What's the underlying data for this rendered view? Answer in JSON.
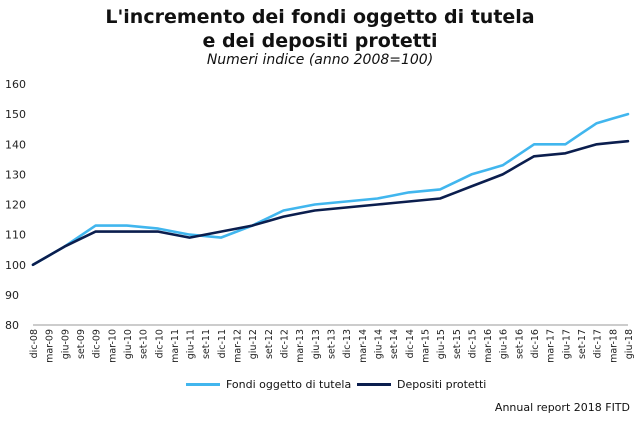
{
  "header": {
    "title_line1": "L'incremento dei fondi oggetto di tutela",
    "title_line2": "e dei depositi protetti",
    "subtitle": "Numeri indice (anno 2008=100)"
  },
  "source": "Annual report 2018 FITD",
  "colors": {
    "fondi": "#41b6ee",
    "depositi": "#0b1e4e",
    "axis": "#9a9a9a"
  },
  "chart_data": {
    "type": "line",
    "title": "L'incremento dei fondi oggetto di tutela e dei depositi protetti",
    "subtitle": "Numeri indice (anno 2008=100)",
    "x": [
      "dic-08",
      "mar-09",
      "giu-09",
      "set-09",
      "dic-09",
      "mar-10",
      "giu-10",
      "set-10",
      "dic-10",
      "mar-11",
      "giu-11",
      "set-11",
      "dic-11",
      "mar-12",
      "giu-12",
      "set-12",
      "dic-12",
      "mar-13",
      "giu-13",
      "set-13",
      "dic-13",
      "mar-14",
      "giu-14",
      "set-14",
      "dic-14",
      "mar-15",
      "giu-15",
      "set-15",
      "dic-15",
      "mar-16",
      "giu-16",
      "set-16",
      "dic-16",
      "mar-17",
      "giu-17",
      "set-17",
      "dic-17",
      "mar-18",
      "giu-18"
    ],
    "series": [
      {
        "name": "Fondi oggetto di tutela",
        "values": [
          100,
          103,
          106,
          109.5,
          113,
          113,
          113,
          112.5,
          112,
          111,
          110,
          109.5,
          109,
          111,
          113,
          115.5,
          118,
          119,
          120,
          120.5,
          121,
          121.5,
          122,
          123,
          124,
          124.5,
          125,
          127.5,
          130,
          131.5,
          133,
          136.5,
          140,
          140,
          140,
          143.5,
          147,
          148.5,
          150
        ]
      },
      {
        "name": "Depositi protetti",
        "values": [
          100,
          103,
          106,
          108.5,
          111,
          111,
          111,
          111,
          111,
          110,
          109,
          110,
          111,
          112,
          113,
          114.5,
          116,
          117,
          118,
          118.5,
          119,
          119.5,
          120,
          120.5,
          121,
          121.5,
          122,
          124,
          126,
          128,
          130,
          133,
          136,
          136.5,
          137,
          138.5,
          140,
          140.5,
          141
        ]
      }
    ],
    "ylim": [
      80,
      160
    ],
    "yticks": [
      80,
      90,
      100,
      110,
      120,
      130,
      140,
      150,
      160
    ],
    "grid": false,
    "legend": "bottom"
  }
}
